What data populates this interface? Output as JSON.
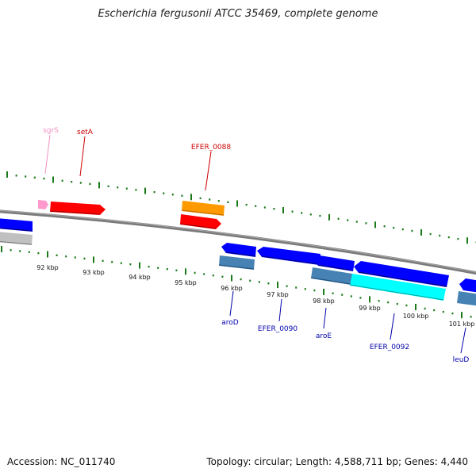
{
  "title": "Escherichia fergusonii ATCC 35469, complete genome",
  "footer": {
    "accession": "Accession: NC_011740",
    "topology": "Topology: circular; Length: 4,588,711 bp; Genes: 4,440"
  },
  "colors": {
    "backbone": "#808080",
    "tick_marks": "#1a7a1a",
    "label_top_red": "#cc0000",
    "label_top_pink": "#f090c0",
    "label_bottom_blue": "#0000aa",
    "feature_red": "#ff0000",
    "feature_orange": "#ff9900",
    "feature_blue": "#0000ff",
    "feature_steelblue": "#4682b4",
    "feature_cyan": "#00ffff",
    "feature_gray": "#c0c0c0",
    "feature_pink": "#ff99cc"
  },
  "scale_labels": [
    "92 kbp",
    "93 kbp",
    "94 kbp",
    "95 kbp",
    "96 kbp",
    "97 kbp",
    "98 kbp",
    "99 kbp",
    "100 kbp",
    "101 kbp"
  ],
  "gene_labels_top": [
    {
      "text": "sgrS",
      "color": "#f090c0"
    },
    {
      "text": "setA",
      "color": "#cc0000"
    },
    {
      "text": "EFER_0088",
      "color": "#cc0000"
    }
  ],
  "gene_labels_bottom": [
    {
      "text": "aroD"
    },
    {
      "text": "EFER_0090"
    },
    {
      "text": "aroE"
    },
    {
      "text": "EFER_0092"
    },
    {
      "text": "leuD"
    }
  ]
}
